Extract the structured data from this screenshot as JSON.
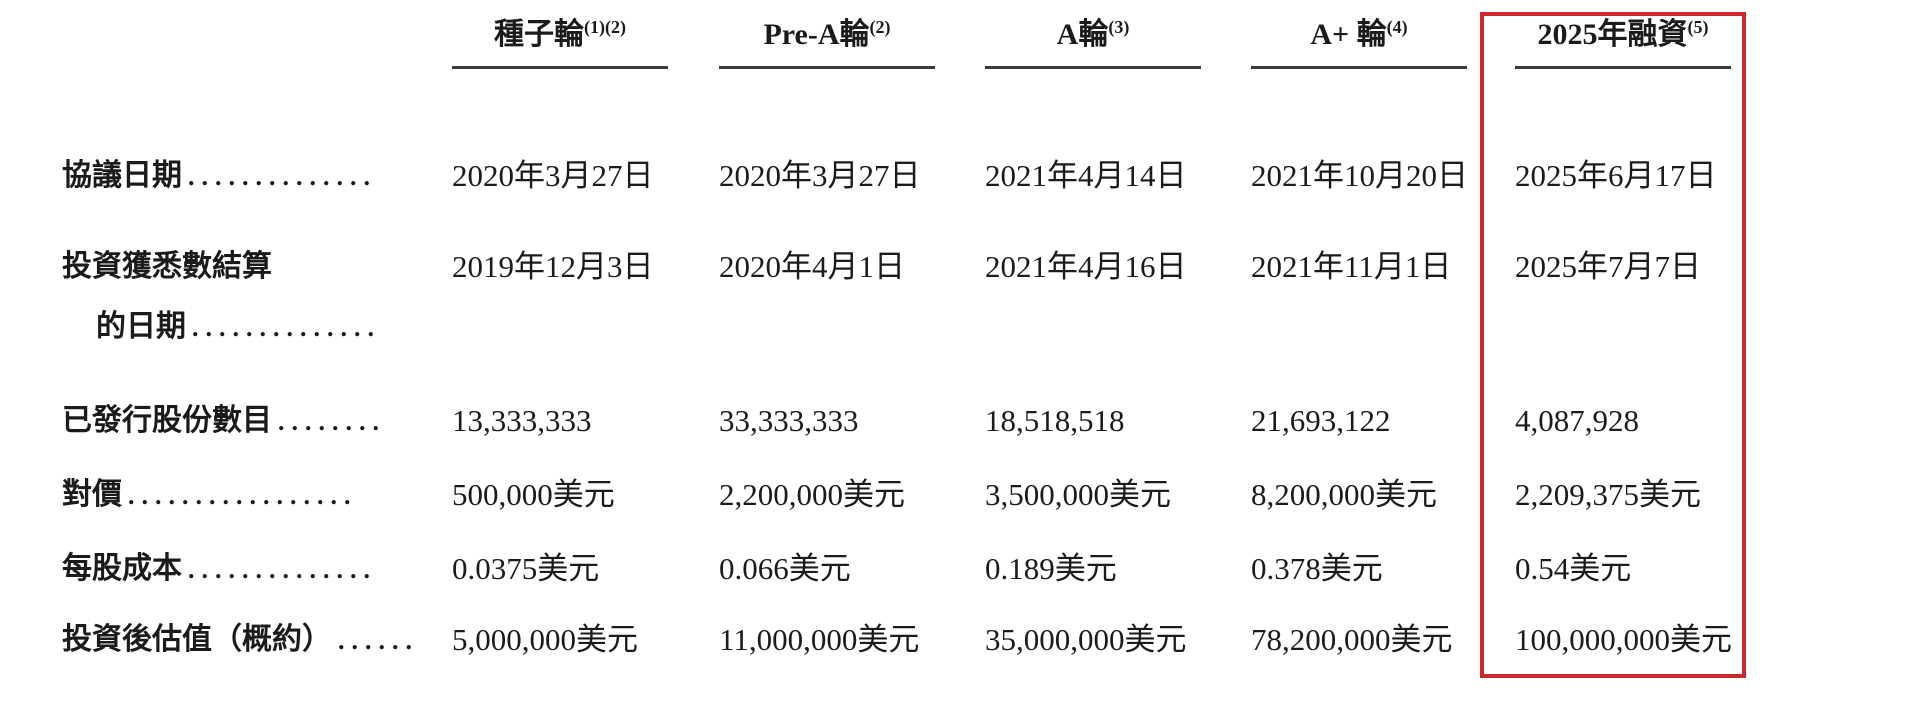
{
  "table": {
    "highlight_color": "#cb282d",
    "rule_color": "#3c3c3c",
    "columns": [
      {
        "label": "種子輪",
        "sup": "(1)(2)"
      },
      {
        "label": "Pre-A輪",
        "sup": "(2)"
      },
      {
        "label": "A輪",
        "sup": "(3)"
      },
      {
        "label": "A+ 輪",
        "sup": "(4)"
      },
      {
        "label": "2025年融資",
        "sup": "(5)",
        "highlighted": true
      }
    ],
    "rows": [
      {
        "label": "協議日期",
        "dots": "..............",
        "values": [
          "2020年3月27日",
          "2020年3月27日",
          "2021年4月14日",
          "2021年10月20日",
          "2025年6月17日"
        ]
      },
      {
        "label": "投資獲悉數結算",
        "cont_label": "的日期",
        "cont_dots": "..............",
        "values": [
          "2019年12月3日",
          "2020年4月1日",
          "2021年4月16日",
          "2021年11月1日",
          "2025年7月7日"
        ]
      },
      {
        "label": "已發行股份數目",
        "dots": "........",
        "values": [
          "13,333,333",
          "33,333,333",
          "18,518,518",
          "21,693,122",
          "4,087,928"
        ]
      },
      {
        "label": "對價",
        "dots": ".................",
        "values": [
          "500,000美元",
          "2,200,000美元",
          "3,500,000美元",
          "8,200,000美元",
          "2,209,375美元"
        ]
      },
      {
        "label": "每股成本",
        "dots": "..............",
        "values": [
          "0.0375美元",
          "0.066美元",
          "0.189美元",
          "0.378美元",
          "0.54美元"
        ]
      },
      {
        "label": "投資後估值（概約）",
        "dots": "......",
        "values": [
          "5,000,000美元",
          "11,000,000美元",
          "35,000,000美元",
          "78,200,000美元",
          "100,000,000美元"
        ]
      }
    ]
  }
}
